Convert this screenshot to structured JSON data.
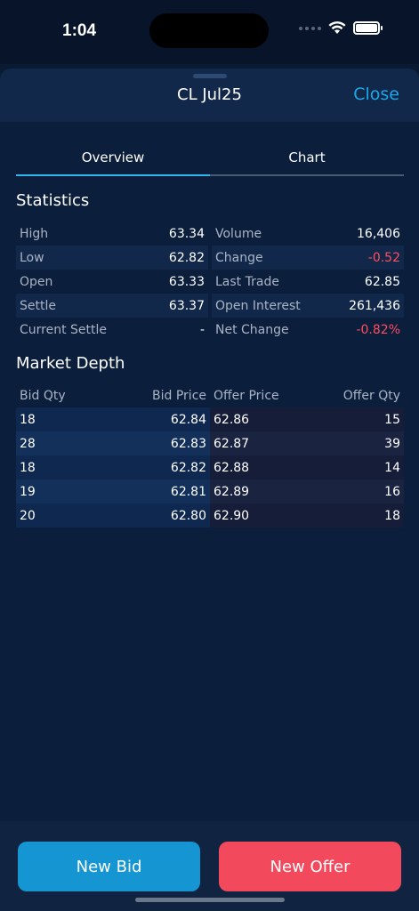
{
  "status": {
    "time": "1:04"
  },
  "header": {
    "title": "CL Jul25",
    "close_label": "Close"
  },
  "tabs": [
    {
      "label": "Overview",
      "active": true
    },
    {
      "label": "Chart",
      "active": false
    }
  ],
  "statistics": {
    "title": "Statistics",
    "rows": [
      {
        "l_label": "High",
        "l_value": "63.34",
        "r_label": "Volume",
        "r_value": "16,406"
      },
      {
        "l_label": "Low",
        "l_value": "62.82",
        "r_label": "Change",
        "r_value": "-0.52"
      },
      {
        "l_label": "Open",
        "l_value": "63.33",
        "r_label": "Last Trade",
        "r_value": "62.85"
      },
      {
        "l_label": "Settle",
        "l_value": "63.37",
        "r_label": "Open Interest",
        "r_value": "261,436"
      },
      {
        "l_label": "Current Settle",
        "l_value": "-",
        "r_label": "Net Change",
        "r_value": "-0.82%"
      }
    ]
  },
  "market_depth": {
    "title": "Market Depth",
    "headers": [
      "Bid Qty",
      "Bid Price",
      "Offer Price",
      "Offer Qty"
    ],
    "rows": [
      [
        "18",
        "62.84",
        "62.86",
        "15"
      ],
      [
        "28",
        "62.83",
        "62.87",
        "39"
      ],
      [
        "18",
        "62.82",
        "62.88",
        "14"
      ],
      [
        "19",
        "62.81",
        "62.89",
        "16"
      ],
      [
        "20",
        "62.80",
        "62.90",
        "18"
      ]
    ]
  },
  "actions": {
    "bid_label": "New Bid",
    "offer_label": "New Offer"
  },
  "colors": {
    "accent": "#1da6e8",
    "negative": "#ff4d5e",
    "bid_button": "#1596d2",
    "offer_button": "#f24a5c"
  }
}
